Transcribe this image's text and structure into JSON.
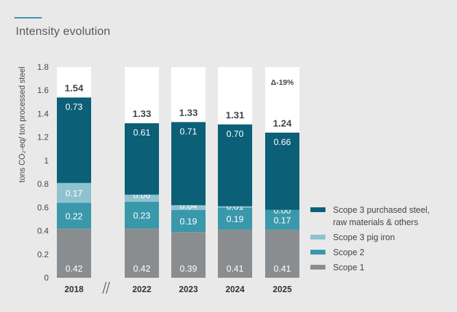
{
  "title": "Intensity evolution",
  "chart_data": {
    "type": "bar",
    "stacked": true,
    "title": "Intensity evolution",
    "xlabel": "",
    "ylabel": "tons CO₂-eq/ ton processed steel",
    "ylim": [
      0,
      1.8
    ],
    "yticks": [
      "0",
      "0.2",
      "0.4",
      "0.6",
      "0.8",
      "1",
      "1.2",
      "1.4",
      "1.6",
      "1.8"
    ],
    "categories": [
      "2018",
      "2022",
      "2023",
      "2024",
      "2025"
    ],
    "series": [
      {
        "name": "Scope 1",
        "color": "#8a8d90",
        "values": [
          0.42,
          0.42,
          0.39,
          0.41,
          0.41
        ],
        "labels": [
          "0.42",
          "0.42",
          "0.39",
          "0.41",
          "0.41"
        ]
      },
      {
        "name": "Scope 2",
        "color": "#3a98ab",
        "values": [
          0.22,
          0.23,
          0.19,
          0.19,
          0.17
        ],
        "labels": [
          "0.22",
          "0.23",
          "0.19",
          "0.19",
          "0.17"
        ]
      },
      {
        "name": "Scope 3 pig iron",
        "color": "#8fc2cf",
        "values": [
          0.17,
          0.06,
          0.04,
          0.01,
          0.0
        ],
        "labels": [
          "0.17",
          "0.06",
          "0.04",
          "0.01",
          "0.00"
        ]
      },
      {
        "name": "Scope 3 purchased steel, raw materials & others",
        "legend_lines": [
          "Scope 3 purchased steel,",
          "raw materials & others"
        ],
        "color": "#0b5f77",
        "values": [
          0.73,
          0.61,
          0.71,
          0.7,
          0.66
        ],
        "labels": [
          "0.73",
          "0.61",
          "0.71",
          "0.70",
          "0.66"
        ]
      }
    ],
    "totals": [
      "1.54",
      "1.33",
      "1.33",
      "1.31",
      "1.24"
    ],
    "annotation": {
      "category": "2025",
      "text": "Δ-19%"
    },
    "axis_break_after": "2018",
    "legend_position": "right"
  }
}
